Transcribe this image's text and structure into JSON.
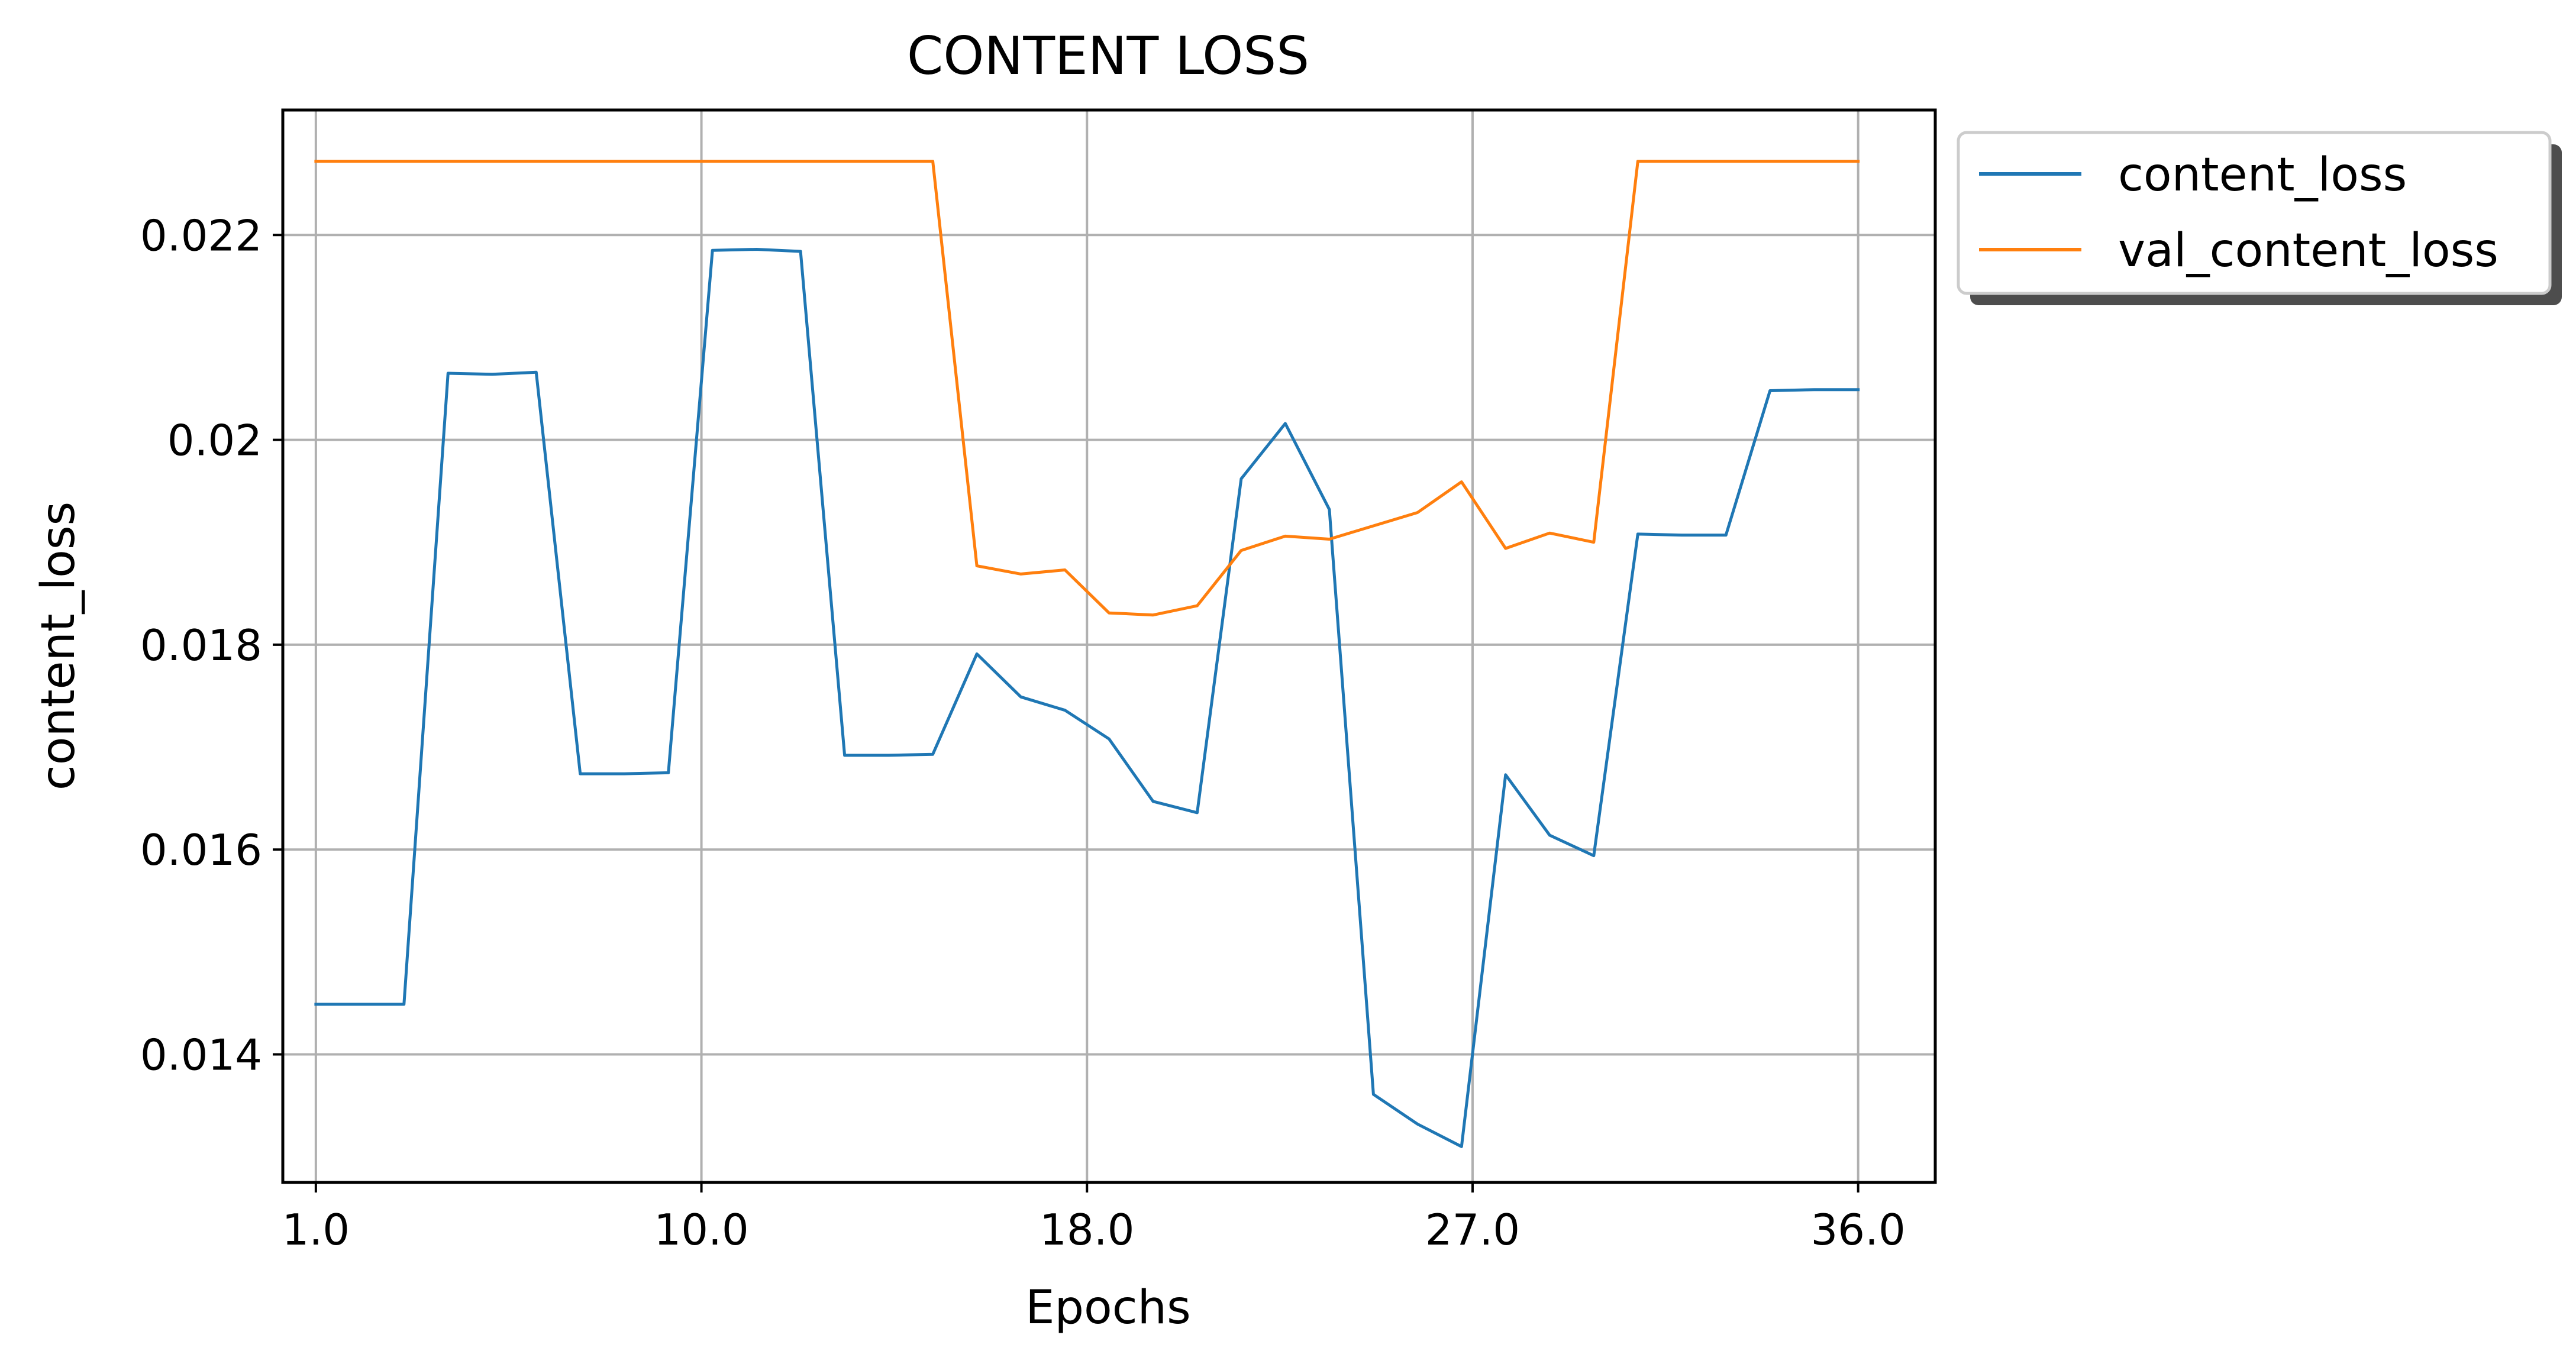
{
  "chart_data": {
    "type": "line",
    "title": "CONTENT LOSS",
    "xlabel": "Epochs",
    "ylabel": "content_loss",
    "x_tick_labels": [
      "1.0",
      "10.0",
      "18.0",
      "27.0",
      "36.0"
    ],
    "y_tick_labels": [
      "0.014",
      "0.016",
      "0.018",
      "0.02",
      "0.022"
    ],
    "xlim": [
      -0.75,
      36.75
    ],
    "ylim": [
      0.01275,
      0.02322
    ],
    "grid": true,
    "legend_position": "outside upper right",
    "x": [
      0,
      1,
      2,
      3,
      4,
      5,
      6,
      7,
      8,
      9,
      10,
      11,
      12,
      13,
      14,
      15,
      16,
      17,
      18,
      19,
      20,
      21,
      22,
      23,
      24,
      25,
      26,
      27,
      28,
      29,
      30,
      31,
      32,
      33,
      34,
      35
    ],
    "series": [
      {
        "name": "content_loss",
        "color": "#1f77b4",
        "values": [
          0.01449,
          0.01449,
          0.01449,
          0.02065,
          0.02064,
          0.02066,
          0.01674,
          0.01674,
          0.01675,
          0.02185,
          0.02186,
          0.02184,
          0.01692,
          0.01692,
          0.01693,
          0.01791,
          0.01749,
          0.01736,
          0.01708,
          0.01647,
          0.01636,
          0.01962,
          0.02016,
          0.01932,
          0.01361,
          0.01332,
          0.0131,
          0.01673,
          0.01614,
          0.01594,
          0.01908,
          0.01907,
          0.01907,
          0.02048,
          0.02049,
          0.02049
        ]
      },
      {
        "name": "val_content_loss",
        "color": "#ff7f0e",
        "values": [
          0.02272,
          0.02272,
          0.02272,
          0.02272,
          0.02272,
          0.02272,
          0.02272,
          0.02272,
          0.02272,
          0.02272,
          0.02272,
          0.02272,
          0.02272,
          0.02272,
          0.02272,
          0.01877,
          0.01869,
          0.01873,
          0.01831,
          0.01829,
          0.01838,
          0.01892,
          0.01906,
          0.01903,
          0.01916,
          0.01929,
          0.01959,
          0.01894,
          0.01909,
          0.019,
          0.02272,
          0.02272,
          0.02272,
          0.02272,
          0.02272,
          0.02272
        ]
      }
    ]
  }
}
